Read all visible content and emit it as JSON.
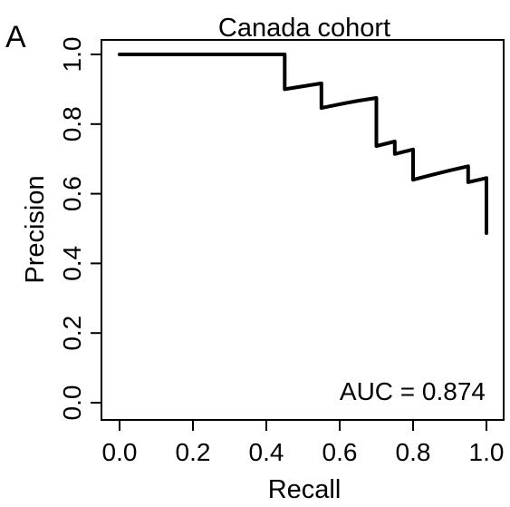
{
  "panel_label": "A",
  "chart_data": {
    "type": "line",
    "title": "Canada cohort",
    "xlabel": "Recall",
    "ylabel": "Precision",
    "xlim": [
      0.0,
      1.0
    ],
    "ylim": [
      0.0,
      1.0
    ],
    "x_ticks": [
      "0.0",
      "0.2",
      "0.4",
      "0.6",
      "0.8",
      "1.0"
    ],
    "y_ticks": [
      "0.0",
      "0.2",
      "0.4",
      "0.6",
      "0.8",
      "1.0"
    ],
    "grid": false,
    "annotation": "AUC = 0.874",
    "series": [
      {
        "x": [
          0.0,
          0.1,
          0.2,
          0.3,
          0.4,
          0.45,
          0.45,
          0.55,
          0.55,
          0.6,
          0.65,
          0.7,
          0.7,
          0.75,
          0.75,
          0.8,
          0.8,
          0.85,
          0.9,
          0.95,
          0.95,
          1.0,
          1.0
        ],
        "y": [
          1.0,
          1.0,
          1.0,
          1.0,
          1.0,
          1.0,
          0.9,
          0.917,
          0.846,
          0.857,
          0.867,
          0.875,
          0.737,
          0.75,
          0.714,
          0.727,
          0.64,
          0.654,
          0.667,
          0.679,
          0.633,
          0.645,
          0.487
        ],
        "color": "#000000"
      }
    ]
  }
}
